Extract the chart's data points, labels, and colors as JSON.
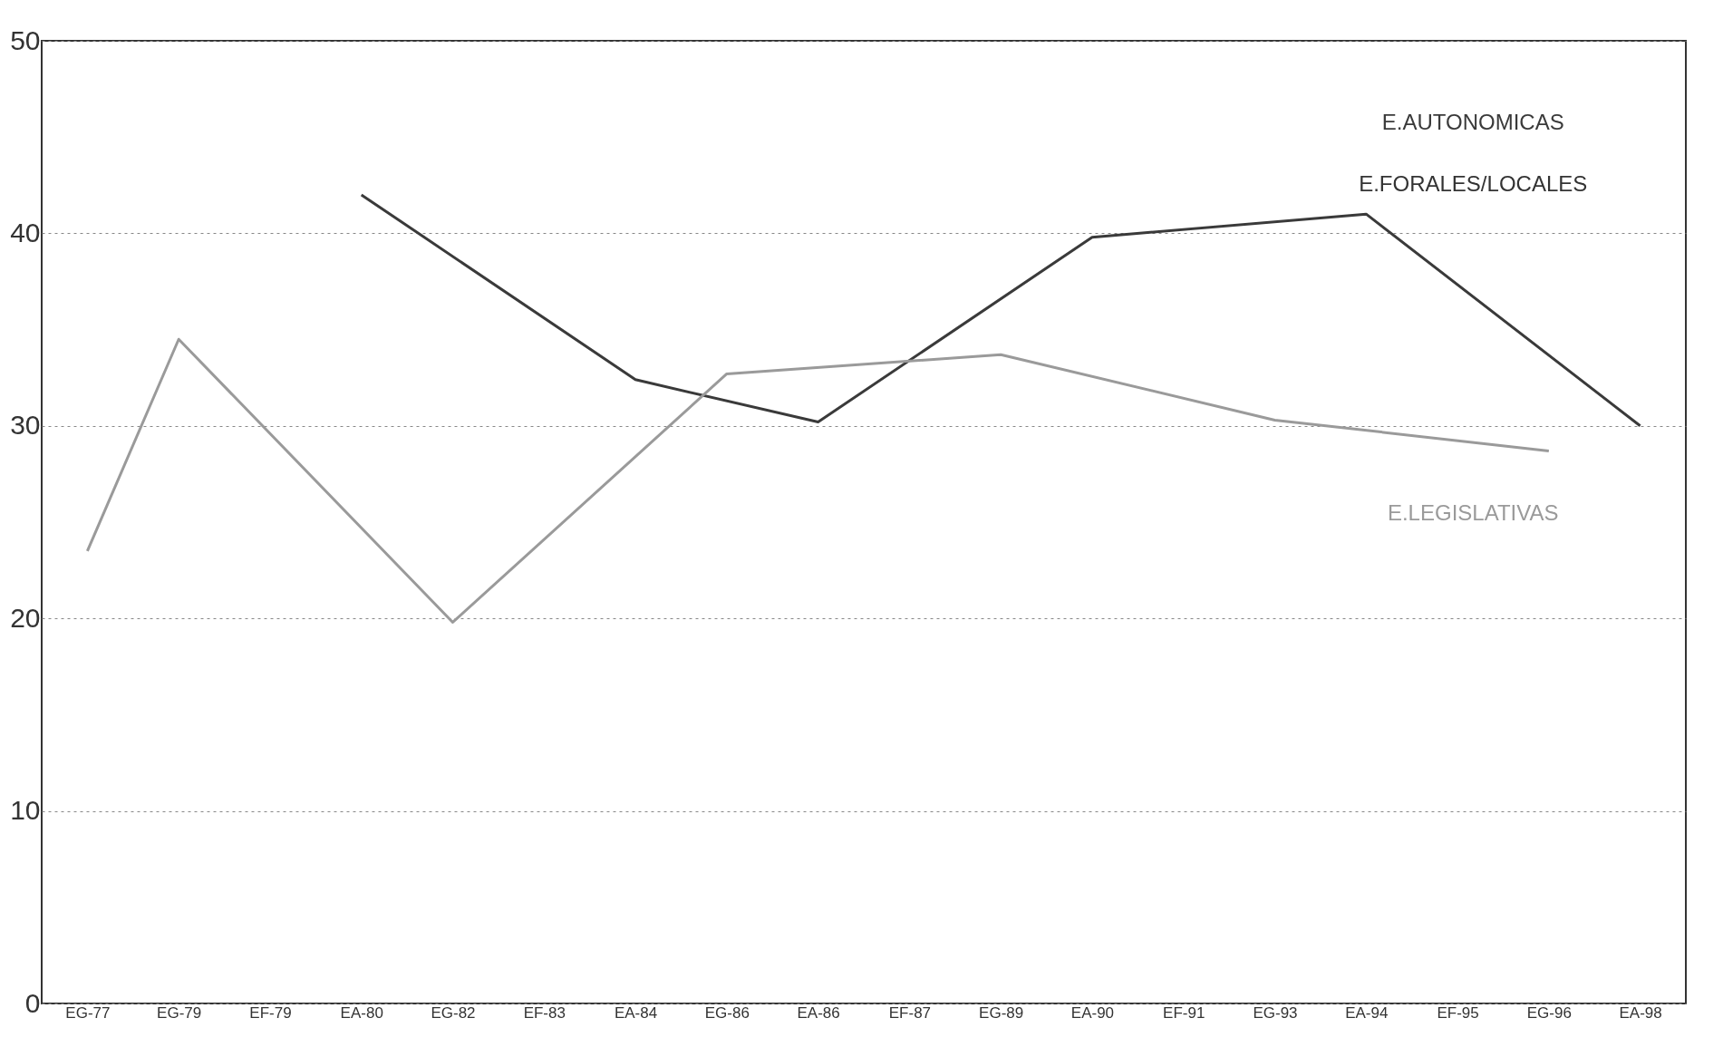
{
  "chart_data": {
    "type": "line",
    "categories": [
      "EG-77",
      "EG-79",
      "EF-79",
      "EA-80",
      "EG-82",
      "EF-83",
      "EA-84",
      "EG-86",
      "EA-86",
      "EF-87",
      "EG-89",
      "EA-90",
      "EF-91",
      "EG-93",
      "EA-94",
      "EF-95",
      "EG-96",
      "EA-98"
    ],
    "series": [
      {
        "name": "E.AUTONOMICAS",
        "color": "#3a3a3a",
        "values": [
          null,
          null,
          null,
          42,
          null,
          null,
          32.4,
          null,
          30.2,
          null,
          null,
          39.8,
          null,
          null,
          41,
          null,
          null,
          30
        ]
      },
      {
        "name": "E.LEGISLATIVAS",
        "color": "#9a9a9a",
        "values": [
          23.5,
          34.5,
          null,
          null,
          19.8,
          null,
          null,
          32.7,
          null,
          null,
          33.7,
          null,
          null,
          30.3,
          null,
          null,
          28.7,
          null
        ]
      }
    ],
    "annotations": [
      "E.FORALES/LOCALES"
    ],
    "ylim": [
      0,
      50
    ],
    "yticks": [
      0,
      10,
      20,
      30,
      40,
      50
    ],
    "grid": "y",
    "marker": "none",
    "line_style": "solid"
  }
}
